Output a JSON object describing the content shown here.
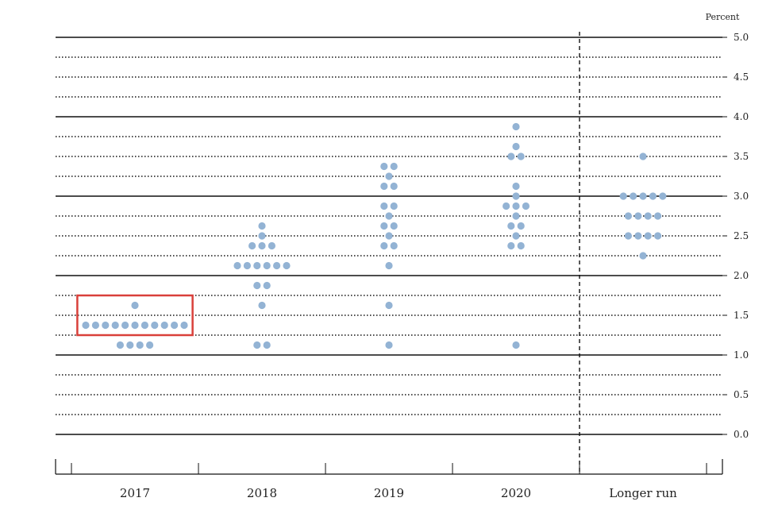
{
  "chart_data": {
    "type": "scatter",
    "subtype": "dot-plot",
    "unit_label": "Percent",
    "categories": [
      "2017",
      "2018",
      "2019",
      "2020",
      "Longer run"
    ],
    "ylim": [
      0,
      5
    ],
    "y_ticks": [
      "0.0",
      "0.5",
      "1.0",
      "1.5",
      "2.0",
      "2.5",
      "3.0",
      "3.5",
      "4.0",
      "4.5",
      "5.0"
    ],
    "grid": "solid at whole percents, dotted at every 0.25",
    "separator_before": "Longer run",
    "dot_color": "#93b3d4",
    "highlight_color": "#d9403a",
    "highlight": {
      "category": "2017",
      "y_range": [
        1.25,
        1.75
      ]
    },
    "series": [
      {
        "category": "2017",
        "values": [
          {
            "y": 1.625,
            "count": 1
          },
          {
            "y": 1.375,
            "count": 11
          },
          {
            "y": 1.125,
            "count": 4
          }
        ]
      },
      {
        "category": "2018",
        "values": [
          {
            "y": 2.625,
            "count": 1
          },
          {
            "y": 2.5,
            "count": 1
          },
          {
            "y": 2.375,
            "count": 3
          },
          {
            "y": 2.125,
            "count": 6
          },
          {
            "y": 1.875,
            "count": 2
          },
          {
            "y": 1.625,
            "count": 1
          },
          {
            "y": 1.125,
            "count": 2
          }
        ]
      },
      {
        "category": "2019",
        "values": [
          {
            "y": 3.375,
            "count": 2
          },
          {
            "y": 3.25,
            "count": 1
          },
          {
            "y": 3.125,
            "count": 2
          },
          {
            "y": 2.875,
            "count": 2
          },
          {
            "y": 2.75,
            "count": 1
          },
          {
            "y": 2.625,
            "count": 2
          },
          {
            "y": 2.5,
            "count": 1
          },
          {
            "y": 2.375,
            "count": 2
          },
          {
            "y": 2.125,
            "count": 1
          },
          {
            "y": 1.625,
            "count": 1
          },
          {
            "y": 1.125,
            "count": 1
          }
        ]
      },
      {
        "category": "2020",
        "values": [
          {
            "y": 3.875,
            "count": 1
          },
          {
            "y": 3.625,
            "count": 1
          },
          {
            "y": 3.5,
            "count": 2
          },
          {
            "y": 3.125,
            "count": 1
          },
          {
            "y": 3.0,
            "count": 1
          },
          {
            "y": 2.875,
            "count": 3
          },
          {
            "y": 2.75,
            "count": 1
          },
          {
            "y": 2.625,
            "count": 2
          },
          {
            "y": 2.5,
            "count": 1
          },
          {
            "y": 2.375,
            "count": 2
          },
          {
            "y": 1.125,
            "count": 1
          }
        ]
      },
      {
        "category": "Longer run",
        "values": [
          {
            "y": 3.5,
            "count": 1
          },
          {
            "y": 3.0,
            "count": 5
          },
          {
            "y": 2.75,
            "count": 4
          },
          {
            "y": 2.5,
            "count": 4
          },
          {
            "y": 2.25,
            "count": 1
          }
        ]
      }
    ]
  }
}
